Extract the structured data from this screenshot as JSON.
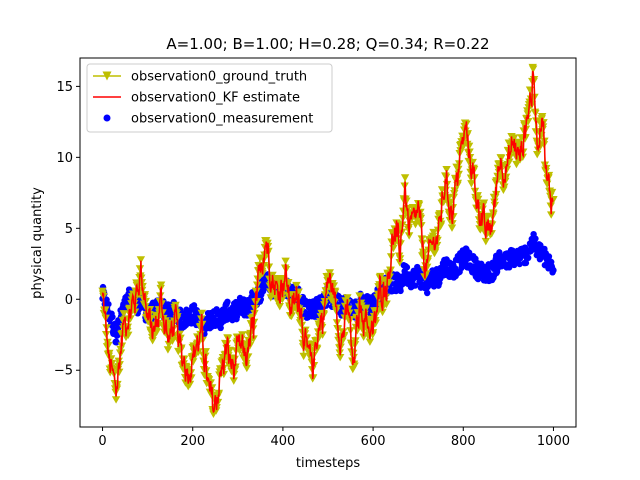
{
  "chart_data": {
    "type": "line",
    "title": "A=1.00; B=1.00; H=0.28; Q=0.34; R=0.22",
    "xlabel": "timesteps",
    "ylabel": "physical quantity",
    "xlim": [
      -50,
      1050
    ],
    "ylim": [
      -9,
      17
    ],
    "x_ticks": [
      0,
      200,
      400,
      600,
      800,
      1000
    ],
    "x_tick_labels": [
      "0",
      "200",
      "400",
      "600",
      "800",
      "1000"
    ],
    "y_ticks": [
      -5,
      0,
      5,
      10,
      15
    ],
    "y_tick_labels": [
      "−5",
      "0",
      "5",
      "10",
      "15"
    ],
    "grid": false,
    "legend_position": "top-left",
    "anchor_x": [
      0,
      15,
      30,
      45,
      60,
      75,
      85,
      100,
      115,
      130,
      145,
      160,
      175,
      190,
      205,
      220,
      235,
      248,
      260,
      275,
      290,
      305,
      320,
      335,
      350,
      362,
      375,
      390,
      405,
      420,
      435,
      450,
      465,
      475,
      490,
      500,
      515,
      530,
      545,
      555,
      570,
      585,
      600,
      615,
      630,
      645,
      660,
      670,
      680,
      690,
      700,
      710,
      720,
      730,
      745,
      760,
      775,
      790,
      805,
      820,
      835,
      850,
      865,
      880,
      895,
      910,
      925,
      940,
      955,
      965,
      975,
      985,
      1000
    ],
    "anchor_truth": [
      0.3,
      -4.5,
      -6.5,
      -2.0,
      -1.0,
      0.5,
      2.2,
      -1.5,
      -2.5,
      0.0,
      -3.0,
      -1.5,
      -4.0,
      -5.0,
      -3.5,
      -2.5,
      -6.5,
      -7.8,
      -5.5,
      -3.5,
      -5.0,
      -3.5,
      -4.0,
      -2.0,
      2.0,
      4.5,
      1.5,
      0.5,
      1.8,
      -1.0,
      0.5,
      -3.5,
      -5.0,
      -2.5,
      -1.0,
      1.5,
      0.0,
      -3.0,
      -0.5,
      -5.0,
      -0.5,
      -1.5,
      -2.5,
      0.5,
      1.0,
      4.5,
      3.5,
      8.0,
      4.5,
      5.5,
      6.0,
      3.5,
      2.0,
      4.0,
      4.5,
      8.5,
      6.0,
      9.5,
      12.0,
      9.0,
      6.5,
      4.5,
      5.5,
      10.0,
      9.0,
      11.0,
      10.0,
      12.5,
      15.5,
      11.0,
      13.5,
      8.0,
      7.0
    ],
    "anchor_measurement": [
      0.3,
      -1.0,
      -2.5,
      -0.8,
      0.1,
      -0.5,
      0.0,
      -1.2,
      -0.8,
      -0.5,
      -1.0,
      -0.8,
      -1.5,
      -1.2,
      -1.0,
      -2.0,
      -1.5,
      -1.2,
      -1.5,
      -0.8,
      -1.0,
      -0.5,
      -0.6,
      0.0,
      0.5,
      1.5,
      0.7,
      0.8,
      1.0,
      0.3,
      0.2,
      -0.7,
      -0.8,
      -0.6,
      -0.2,
      0.3,
      0.0,
      -0.6,
      -0.3,
      -1.0,
      -0.2,
      -0.3,
      -0.5,
      0.5,
      1.0,
      1.2,
      1.0,
      2.0,
      1.5,
      1.5,
      1.8,
      1.2,
      1.0,
      1.5,
      1.6,
      2.4,
      2.0,
      2.5,
      3.0,
      2.5,
      2.0,
      1.8,
      2.0,
      2.8,
      2.6,
      3.0,
      3.0,
      3.2,
      4.0,
      3.4,
      3.3,
      2.6,
      2.4
    ],
    "series": [
      {
        "name": "observation0_ground_truth",
        "color": "#bfbf00",
        "marker": "down-triangle",
        "style": "line+markers"
      },
      {
        "name": "observation0_KF estimate",
        "color": "#ff0000",
        "marker": "none",
        "style": "line"
      },
      {
        "name": "observation0_measurement",
        "color": "#0000ff",
        "marker": "circle",
        "style": "scatter"
      }
    ]
  }
}
